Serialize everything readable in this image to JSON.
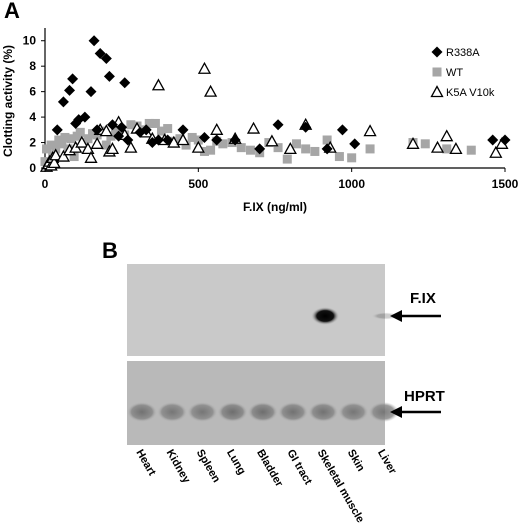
{
  "panels": {
    "a": "A",
    "b": "B"
  },
  "chart_data": {
    "type": "scatter",
    "xlabel": "F.IX (ng/ml)",
    "ylabel": "Clotting activity (%)",
    "xlim": [
      0,
      1500
    ],
    "ylim": [
      0,
      11
    ],
    "xticks": [
      0,
      500,
      1000,
      1500
    ],
    "yticks": [
      0,
      2,
      4,
      6,
      8,
      10
    ],
    "grid": false,
    "legend_position": "right",
    "series": [
      {
        "name": "R338A",
        "marker": "diamond",
        "color": "#000000",
        "points": [
          [
            40,
            3
          ],
          [
            60,
            5.2
          ],
          [
            80,
            6.1
          ],
          [
            90,
            7
          ],
          [
            100,
            3.5
          ],
          [
            110,
            3.8
          ],
          [
            130,
            4
          ],
          [
            150,
            6
          ],
          [
            160,
            10
          ],
          [
            170,
            3
          ],
          [
            180,
            9
          ],
          [
            200,
            8.6
          ],
          [
            210,
            7.2
          ],
          [
            220,
            3.4
          ],
          [
            240,
            2.5
          ],
          [
            250,
            3.2
          ],
          [
            260,
            6.7
          ],
          [
            270,
            2.2
          ],
          [
            310,
            2.8
          ],
          [
            330,
            3
          ],
          [
            350,
            2
          ],
          [
            370,
            2.2
          ],
          [
            400,
            2.2
          ],
          [
            450,
            3
          ],
          [
            520,
            2.4
          ],
          [
            560,
            2.2
          ],
          [
            620,
            2.2
          ],
          [
            700,
            1.5
          ],
          [
            760,
            3.4
          ],
          [
            850,
            3.2
          ],
          [
            920,
            1.5
          ],
          [
            970,
            3
          ],
          [
            1010,
            1.9
          ],
          [
            1460,
            2.2
          ],
          [
            1500,
            2.2
          ]
        ]
      },
      {
        "name": "WT",
        "marker": "square",
        "color": "#a6a6a6",
        "points": [
          [
            0,
            0.5
          ],
          [
            5,
            1.5
          ],
          [
            15,
            0.3
          ],
          [
            20,
            1.8
          ],
          [
            25,
            0.9
          ],
          [
            35,
            1.5
          ],
          [
            45,
            2.2
          ],
          [
            55,
            1.9
          ],
          [
            65,
            2.4
          ],
          [
            75,
            1.5
          ],
          [
            85,
            2.3
          ],
          [
            95,
            0.9
          ],
          [
            105,
            2.5
          ],
          [
            115,
            2.8
          ],
          [
            125,
            2
          ],
          [
            140,
            2.3
          ],
          [
            155,
            2.7
          ],
          [
            170,
            2.6
          ],
          [
            185,
            2.9
          ],
          [
            200,
            1.8
          ],
          [
            215,
            2.5
          ],
          [
            230,
            3.1
          ],
          [
            260,
            2.6
          ],
          [
            280,
            3.4
          ],
          [
            300,
            3.3
          ],
          [
            320,
            3
          ],
          [
            340,
            3.5
          ],
          [
            360,
            3.5
          ],
          [
            380,
            2.9
          ],
          [
            400,
            3.1
          ],
          [
            420,
            2.1
          ],
          [
            440,
            2.3
          ],
          [
            460,
            1.8
          ],
          [
            480,
            2.4
          ],
          [
            500,
            2.2
          ],
          [
            520,
            1.3
          ],
          [
            540,
            1.4
          ],
          [
            560,
            2.1
          ],
          [
            580,
            1.9
          ],
          [
            610,
            2
          ],
          [
            640,
            1.6
          ],
          [
            670,
            1.4
          ],
          [
            700,
            1.2
          ],
          [
            730,
            2
          ],
          [
            760,
            1.6
          ],
          [
            790,
            0.7
          ],
          [
            820,
            1.9
          ],
          [
            850,
            1.5
          ],
          [
            880,
            1.3
          ],
          [
            920,
            2.2
          ],
          [
            960,
            0.9
          ],
          [
            1000,
            0.8
          ],
          [
            1060,
            1.5
          ],
          [
            1200,
            2
          ],
          [
            1240,
            1.9
          ],
          [
            1310,
            1.5
          ],
          [
            1390,
            1.4
          ]
        ]
      },
      {
        "name": "K5A V10k",
        "marker": "triangle-open",
        "color": "#000000",
        "points": [
          [
            5,
            0.1
          ],
          [
            10,
            0.3
          ],
          [
            15,
            0.5
          ],
          [
            20,
            0.2
          ],
          [
            25,
            0.8
          ],
          [
            30,
            0.4
          ],
          [
            35,
            1
          ],
          [
            60,
            0.9
          ],
          [
            80,
            1.4
          ],
          [
            100,
            1.6
          ],
          [
            120,
            2
          ],
          [
            140,
            1.5
          ],
          [
            150,
            0.8
          ],
          [
            170,
            1.9
          ],
          [
            180,
            3
          ],
          [
            200,
            2.9
          ],
          [
            210,
            1.3
          ],
          [
            220,
            1.5
          ],
          [
            240,
            3.6
          ],
          [
            260,
            2.6
          ],
          [
            280,
            1.6
          ],
          [
            300,
            3.1
          ],
          [
            330,
            2.8
          ],
          [
            350,
            2.3
          ],
          [
            370,
            6.5
          ],
          [
            390,
            2.2
          ],
          [
            420,
            2
          ],
          [
            450,
            2.2
          ],
          [
            500,
            1.6
          ],
          [
            520,
            7.8
          ],
          [
            540,
            6
          ],
          [
            560,
            3
          ],
          [
            620,
            2.3
          ],
          [
            680,
            3.1
          ],
          [
            740,
            2.1
          ],
          [
            800,
            1.5
          ],
          [
            850,
            3.4
          ],
          [
            930,
            1.6
          ],
          [
            1060,
            2.9
          ],
          [
            1200,
            1.9
          ],
          [
            1280,
            1.6
          ],
          [
            1310,
            2.5
          ],
          [
            1340,
            1.5
          ],
          [
            1470,
            1.2
          ],
          [
            1490,
            1.9
          ]
        ]
      }
    ]
  },
  "blot": {
    "label_top": "F.IX",
    "label_bottom": "HPRT",
    "lanes": [
      "Heart",
      "Kidney",
      "Spleen",
      "Lung",
      "Bladder",
      "GI tract",
      "Skeletal muscle",
      "Skin",
      "Liver"
    ],
    "fix_intensity": [
      0,
      0,
      0,
      0,
      0,
      0,
      1.0,
      0,
      0.2
    ],
    "hprt_intensity": [
      0.9,
      0.85,
      0.85,
      0.95,
      0.95,
      0.9,
      0.9,
      0.85,
      0.85
    ]
  }
}
